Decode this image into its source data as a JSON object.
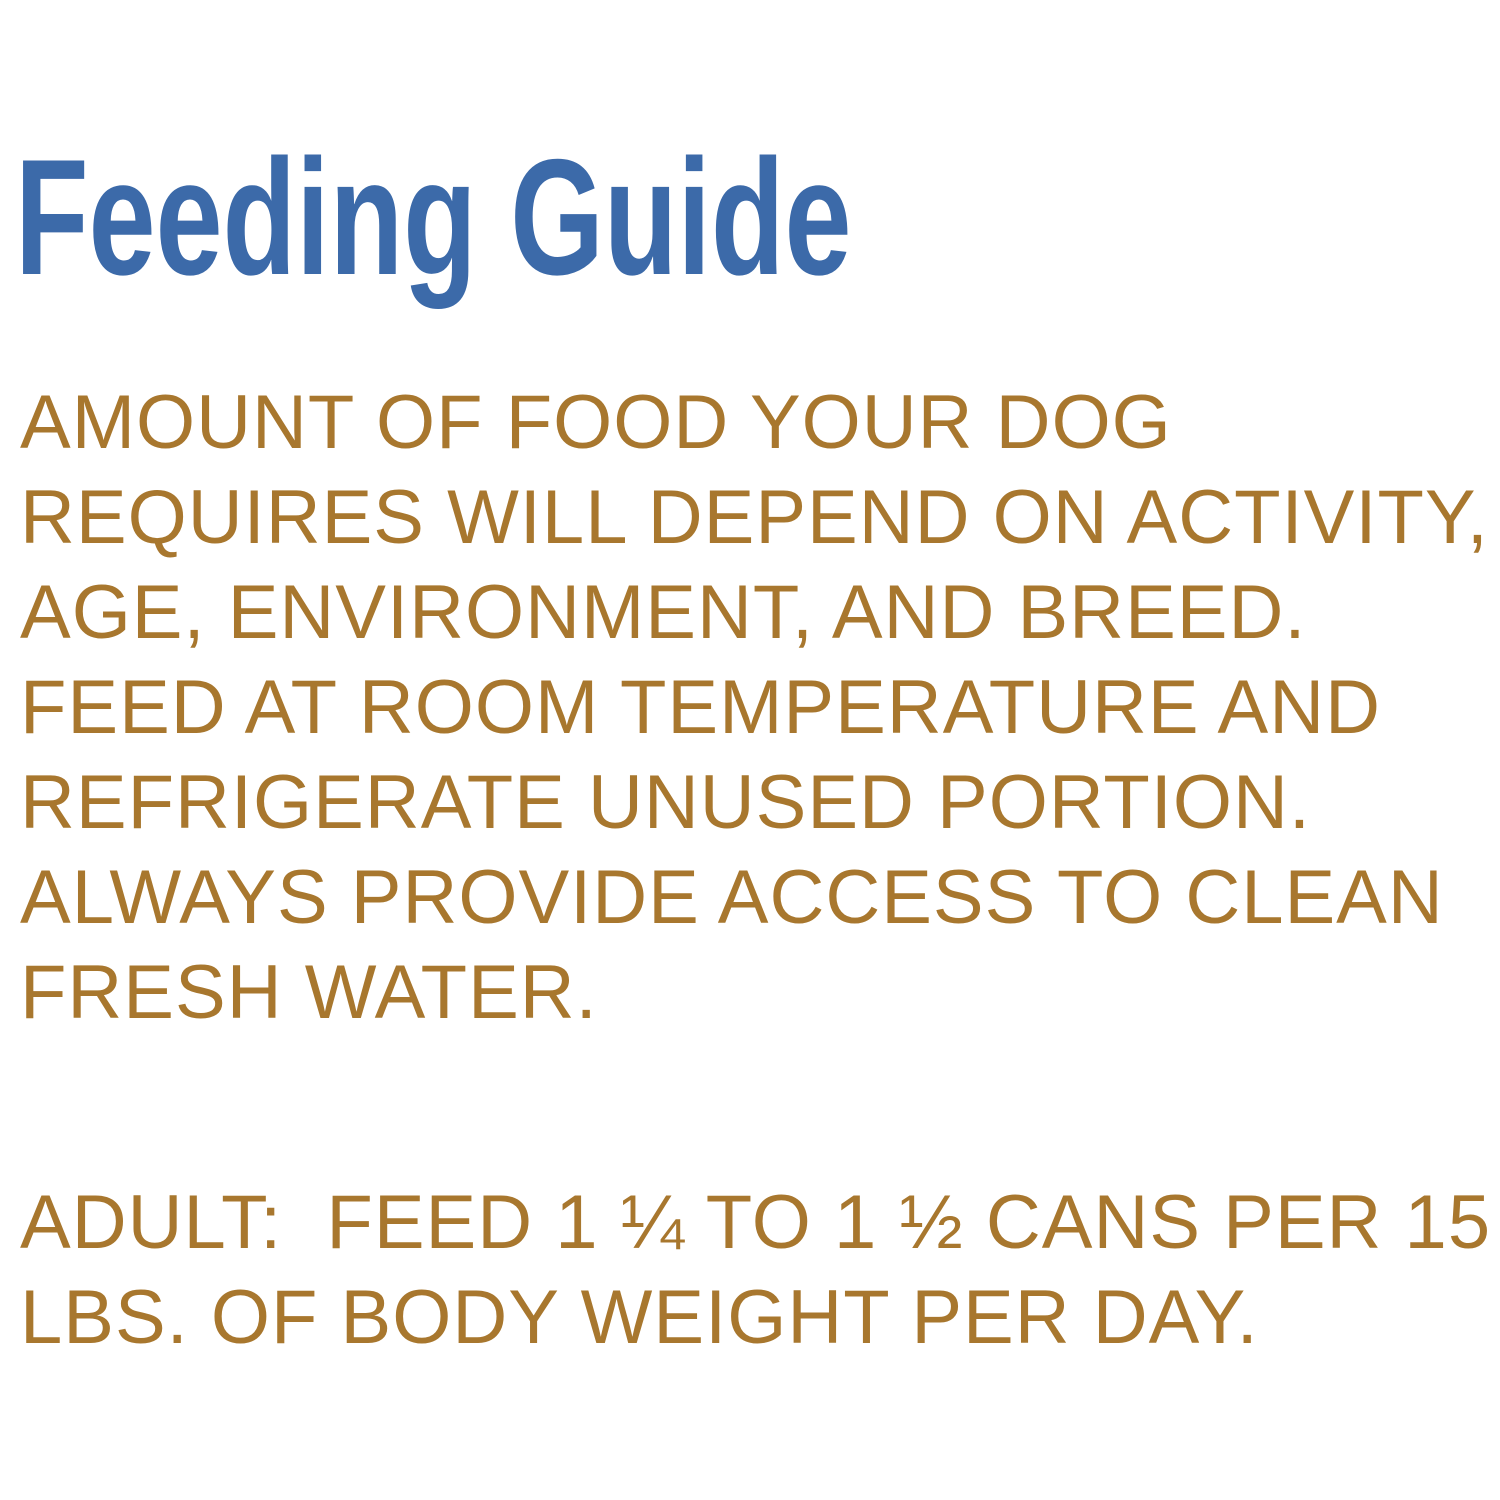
{
  "page": {
    "background_color": "#ffffff"
  },
  "heading": {
    "text": "Feeding Guide",
    "color": "#3c6aa9"
  },
  "body": {
    "color": "#a8772e",
    "instructions_lines": [
      "AMOUNT OF FOOD YOUR DOG",
      "REQUIRES WILL DEPEND ON ACTIVITY,",
      "AGE, ENVIRONMENT, AND BREED.",
      "FEED AT ROOM TEMPERATURE AND",
      "REFRIGERATE UNUSED PORTION.",
      "ALWAYS PROVIDE ACCESS TO CLEAN",
      "FRESH WATER."
    ],
    "adult_lines": [
      "ADULT:  FEED 1 ¼ TO 1 ½ CANS PER 15",
      "LBS. OF BODY WEIGHT PER DAY."
    ]
  }
}
